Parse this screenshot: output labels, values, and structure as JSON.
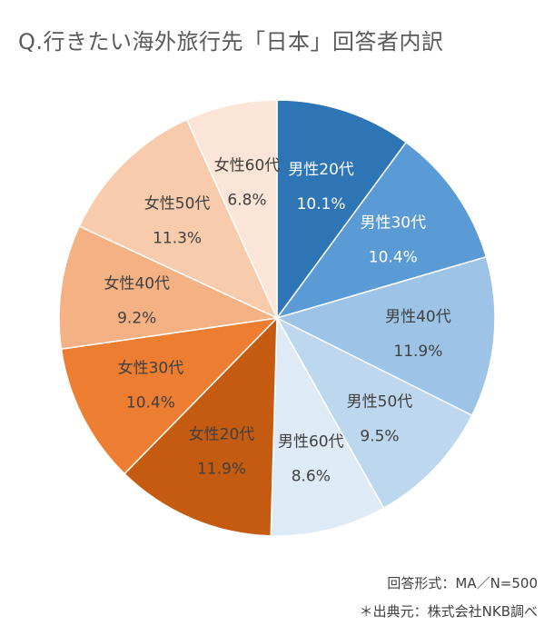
{
  "chart_data": {
    "type": "pie",
    "title": "Q.行きたい海外旅行先「日本」回答者内訳",
    "start_angle_deg": 0,
    "direction": "clockwise",
    "legend": "none",
    "labels": [
      "男性20代",
      "男性30代",
      "男性40代",
      "男性50代",
      "男性60代",
      "女性20代",
      "女性30代",
      "女性40代",
      "女性50代",
      "女性60代"
    ],
    "values": [
      10.1,
      10.4,
      11.9,
      9.5,
      8.6,
      11.9,
      10.4,
      9.2,
      11.3,
      6.8
    ],
    "value_labels": [
      "10.1%",
      "10.4%",
      "11.9%",
      "9.5%",
      "8.6%",
      "11.9%",
      "10.4%",
      "9.2%",
      "11.3%",
      "6.8%"
    ],
    "colors": [
      "#2e75b6",
      "#5b9bd5",
      "#9dc3e6",
      "#bdd7ee",
      "#deebf7",
      "#c55a11",
      "#ed7d31",
      "#f4b183",
      "#f8cbad",
      "#fbe5d6"
    ],
    "label_colors": [
      "#ffffff",
      "#ffffff",
      "#404040",
      "#404040",
      "#404040",
      "#404040",
      "#404040",
      "#404040",
      "#404040",
      "#404040"
    ]
  },
  "footnotes": {
    "format": "回答形式：MA／N=500",
    "source": "＊出典元：株式会社NKB調べ"
  }
}
